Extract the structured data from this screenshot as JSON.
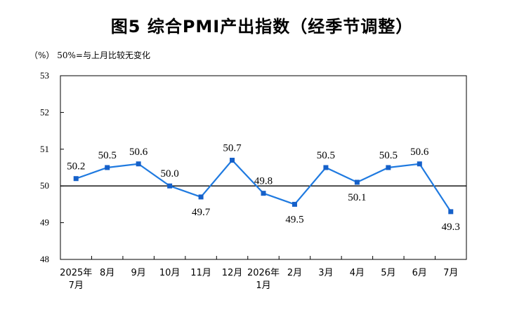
{
  "chart_data": {
    "type": "line",
    "title": "图5 综合PMI产出指数（经季节调整）",
    "note": "（%） 50%=与上月比较无变化",
    "categories": [
      [
        "2025年",
        "7月"
      ],
      [
        "8月"
      ],
      [
        "9月"
      ],
      [
        "10月"
      ],
      [
        "11月"
      ],
      [
        "12月"
      ],
      [
        "2026年",
        "1月"
      ],
      [
        "2月"
      ],
      [
        "3月"
      ],
      [
        "4月"
      ],
      [
        "5月"
      ],
      [
        "6月"
      ],
      [
        "7月"
      ]
    ],
    "values": [
      50.2,
      50.5,
      50.6,
      50.0,
      49.7,
      50.7,
      49.8,
      49.5,
      50.5,
      50.1,
      50.5,
      50.6,
      49.3
    ],
    "value_labels": [
      "50.2",
      "50.5",
      "50.6",
      "50.0",
      "49.7",
      "50.7",
      "49.8",
      "49.5",
      "50.5",
      "50.1",
      "50.5",
      "50.6",
      "49.3"
    ],
    "yticks": [
      "53",
      "52",
      "51",
      "50",
      "49",
      "48"
    ],
    "ylim": [
      48,
      53
    ],
    "reference_line": 50,
    "line_color": "#1f7ae0",
    "marker_color": "#1560c9",
    "grid": false
  }
}
